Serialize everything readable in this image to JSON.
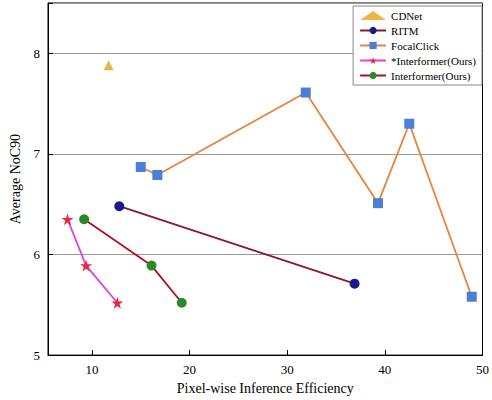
{
  "chart_data": {
    "type": "line",
    "x_label": "Pixel-wise Inference Efficiency",
    "y_label": "Average NoC90",
    "xlim": [
      5.5,
      50
    ],
    "xticks": [
      10,
      20,
      30,
      40,
      50
    ],
    "ylim": [
      5,
      8.5
    ],
    "yticks": [
      5,
      6,
      7,
      8
    ],
    "grid": true,
    "legend": "upper right",
    "series": [
      {
        "name": "CDNet",
        "type": "scatter",
        "marker": "triangle",
        "color": "#e8a317",
        "colors": [
          "#e8a317"
        ],
        "x": [
          11.7
        ],
        "values": [
          7.88
        ]
      },
      {
        "name": "RITM",
        "type": "line",
        "marker": "circle",
        "color": "#8b1a2a",
        "colors": [
          "#1a1a8c",
          "#1a1a8c"
        ],
        "x": [
          12.8,
          36.9
        ],
        "values": [
          6.48,
          5.71
        ]
      },
      {
        "name": "FocalClick",
        "type": "line",
        "marker": "square",
        "color": "#e8843a",
        "colors": [
          "#4a7fd8",
          "#4a7fd8",
          "#4a7fd8",
          "#4a7fd8",
          "#4a7fd8",
          "#4a7fd8"
        ],
        "x": [
          15.0,
          16.7,
          31.9,
          39.3,
          42.5,
          48.9
        ],
        "values": [
          6.87,
          6.79,
          7.61,
          6.51,
          7.3,
          5.58
        ]
      },
      {
        "name": "*Interformer(Ours)",
        "type": "line",
        "marker": "star",
        "color": "#e040e0",
        "colors": [
          "#e8283c",
          "#e8283c",
          "#e8283c"
        ],
        "x": [
          7.5,
          9.4,
          12.6
        ],
        "values": [
          6.35,
          5.89,
          5.52
        ]
      },
      {
        "name": "Interformer(Ours)",
        "type": "line",
        "marker": "circle",
        "color": "#b01020",
        "colors": [
          "#2a8a2a",
          "#2a8a2a",
          "#2a8a2a"
        ],
        "x": [
          9.2,
          16.1,
          19.2
        ],
        "values": [
          6.35,
          5.89,
          5.52
        ]
      }
    ]
  }
}
